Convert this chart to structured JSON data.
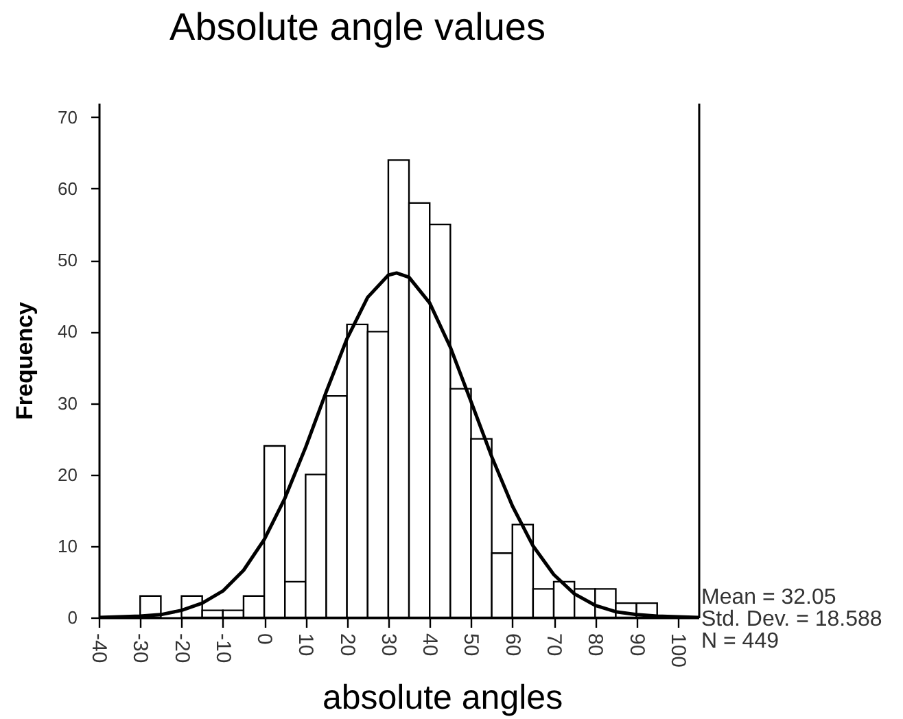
{
  "chart_data": {
    "type": "histogram",
    "title": "Absolute angle values",
    "xlabel": "absolute angles",
    "ylabel": "Frequency",
    "bins": [
      -30,
      -25,
      -20,
      -15,
      -10,
      -5,
      0,
      5,
      10,
      15,
      20,
      25,
      30,
      35,
      40,
      45,
      50,
      55,
      60,
      65,
      70,
      75,
      80,
      85,
      90,
      95
    ],
    "series": [
      {
        "type": "histogram",
        "color": "#ffffff",
        "values": [
          3,
          0,
          3,
          1,
          1,
          3,
          24,
          5,
          20,
          31,
          41,
          40,
          64,
          58,
          55,
          32,
          25,
          9,
          13,
          4,
          5,
          4,
          4,
          2,
          2
        ]
      },
      {
        "type": "line",
        "color": "#000000",
        "x": [
          -40,
          -35,
          -30,
          -25,
          -20,
          -15,
          -10,
          -5,
          0,
          5,
          10,
          15,
          20,
          25,
          30,
          32,
          35,
          40,
          45,
          50,
          55,
          60,
          65,
          70,
          75,
          80,
          85,
          90,
          95,
          100,
          105
        ],
        "values": [
          0.0,
          0.1,
          0.2,
          0.4,
          1.0,
          2.0,
          3.7,
          6.6,
          10.9,
          16.7,
          23.8,
          31.6,
          39.0,
          44.8,
          47.9,
          48.2,
          47.6,
          44.0,
          37.8,
          30.2,
          22.5,
          15.6,
          10.0,
          6.0,
          3.3,
          1.7,
          0.8,
          0.4,
          0.2,
          0.1,
          0.0
        ]
      }
    ],
    "xlim": [
      -40,
      105
    ],
    "ylim": [
      0,
      72
    ],
    "xticks": [
      -40,
      -30,
      -20,
      -10,
      0,
      10,
      20,
      30,
      40,
      50,
      60,
      70,
      80,
      90,
      100
    ],
    "yticks": [
      0,
      10,
      20,
      30,
      40,
      50,
      60,
      70
    ],
    "annotations": [
      "Mean = 32.05",
      "Std. Dev. = 18.588",
      "N = 449"
    ]
  }
}
